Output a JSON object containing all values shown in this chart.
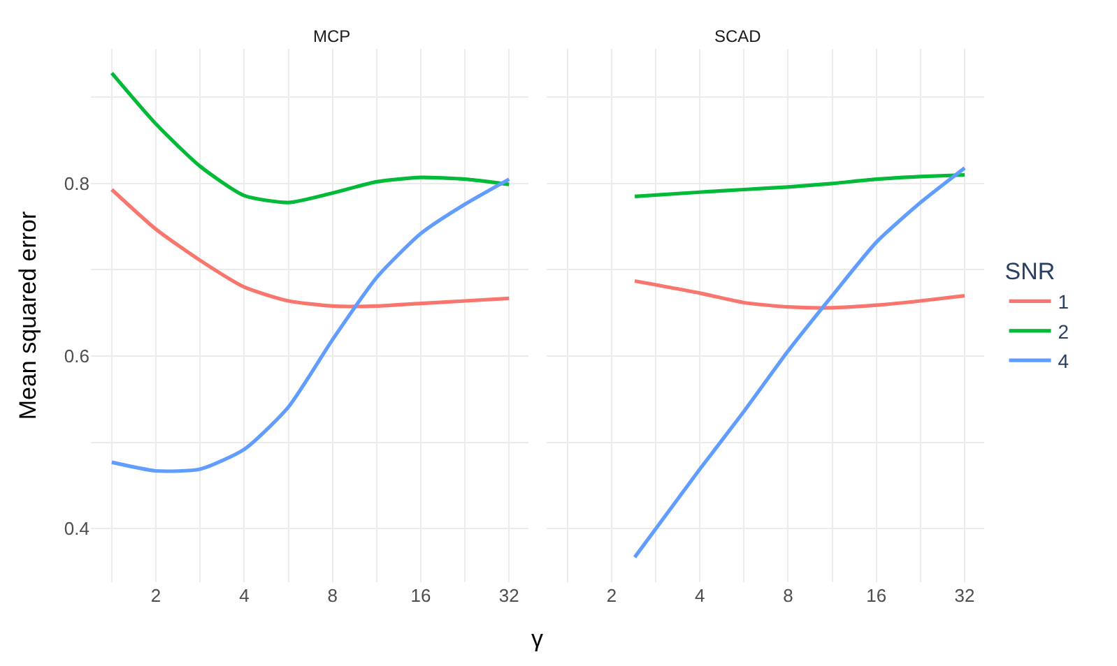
{
  "chart_data": [
    {
      "type": "line",
      "title": "MCP",
      "xlabel": "γ",
      "ylabel": "Mean squared error",
      "grid": true,
      "legend": "right",
      "log": "x",
      "xlim": [
        1.2,
        37.3
      ],
      "xticks": [
        {
          "value": 1.414,
          "label": null
        },
        2,
        {
          "value": 2.828,
          "label": null
        },
        4,
        {
          "value": 5.657,
          "label": null
        },
        8,
        {
          "value": 11.31,
          "label": null
        },
        16,
        {
          "value": 22.63,
          "label": null
        },
        32
      ],
      "ylim": [
        0.338,
        0.956
      ],
      "yticks": [
        0.4,
        {
          "value": 0.5,
          "label": null
        },
        0.6,
        {
          "value": 0.7,
          "label": null
        },
        0.8,
        {
          "value": 0.9,
          "label": null
        }
      ],
      "x": [
        1.414,
        2,
        2.828,
        4,
        5.657,
        8,
        11.31,
        16,
        22.63,
        32
      ],
      "series": [
        {
          "name": "1",
          "color": "#f8766d",
          "values": [
            0.793,
            0.747,
            0.711,
            0.68,
            0.664,
            0.658,
            0.658,
            0.661,
            0.664,
            0.667
          ]
        },
        {
          "name": "2",
          "color": "#00ba38",
          "values": [
            0.928,
            0.869,
            0.82,
            0.786,
            0.778,
            0.789,
            0.802,
            0.807,
            0.805,
            0.799
          ]
        },
        {
          "name": "4",
          "color": "#619cff",
          "values": [
            0.477,
            0.467,
            0.469,
            0.492,
            0.541,
            0.619,
            0.691,
            0.742,
            0.776,
            0.805
          ]
        }
      ]
    },
    {
      "type": "line",
      "title": "SCAD",
      "grid": true,
      "legend": "right",
      "legend_title": "SNR",
      "log": "x",
      "tick_labels": "x",
      "xlim": [
        1.2,
        37.3
      ],
      "xticks": [
        {
          "value": 1.414,
          "label": null
        },
        2,
        {
          "value": 2.828,
          "label": null
        },
        4,
        {
          "value": 5.657,
          "label": null
        },
        8,
        {
          "value": 11.31,
          "label": null
        },
        16,
        {
          "value": 22.63,
          "label": null
        },
        32
      ],
      "ylim": [
        0.338,
        0.956
      ],
      "yticks": [
        0.4,
        {
          "value": 0.5,
          "label": null
        },
        0.6,
        {
          "value": 0.7,
          "label": null
        },
        0.8,
        {
          "value": 0.9,
          "label": null
        }
      ],
      "x": [
        2.4,
        4,
        5.657,
        8,
        11.31,
        16,
        22.63,
        32
      ],
      "series": [
        {
          "name": "1",
          "color": "#f8766d",
          "values": [
            0.687,
            0.673,
            0.662,
            0.657,
            0.656,
            0.659,
            0.664,
            0.67
          ]
        },
        {
          "name": "2",
          "color": "#00ba38",
          "values": [
            0.785,
            0.79,
            0.793,
            0.796,
            0.8,
            0.805,
            0.808,
            0.81
          ]
        },
        {
          "name": "4",
          "color": "#619cff",
          "values": [
            0.367,
            0.469,
            0.536,
            0.606,
            0.67,
            0.732,
            0.778,
            0.818
          ]
        }
      ]
    }
  ]
}
